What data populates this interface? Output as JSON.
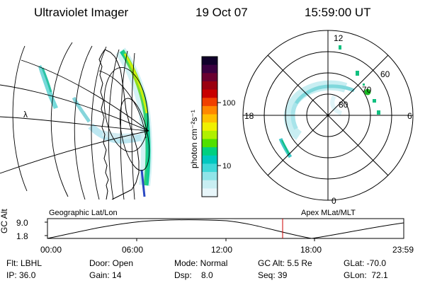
{
  "header": {
    "title": "Ultraviolet Imager",
    "date": "19 Oct 07",
    "time": "15:59:00 UT"
  },
  "geographic_panel": {
    "edge_label": "λ"
  },
  "colorbar": {
    "unit_label": "photon cm⁻²s⁻¹",
    "ticks": [
      "100",
      "10"
    ],
    "colors": [
      "#10002a",
      "#3a0040",
      "#6a0030",
      "#9a0010",
      "#c80000",
      "#f04000",
      "#ff8800",
      "#ffc000",
      "#f0f000",
      "#b0f000",
      "#50e000",
      "#00d080",
      "#00c8c0",
      "#40d8d8",
      "#90e4e8",
      "#c8eef2",
      "#e8f6fa"
    ]
  },
  "polar_plot": {
    "lat_labels": [
      "80",
      "70",
      "60"
    ],
    "mlt_labels": {
      "top": "12",
      "bottom": "0",
      "left": "18",
      "right": "6"
    }
  },
  "altitude_strip": {
    "axis_title": "GC Alt",
    "y_ticks": [
      "9.0",
      "1.8"
    ],
    "left_title": "Geographic Lat/Lon",
    "right_title": "Apex MLat/MLT",
    "time_ticks": [
      "00:00",
      "06:00",
      "12:00",
      "18:00",
      "23:59"
    ],
    "marker_color": "#cc0000"
  },
  "info": {
    "col1": [
      "Flt: LBHL",
      "IP: 36.0"
    ],
    "col2": [
      "Door: Open",
      "Gain: 14"
    ],
    "col3": [
      "Mode: Normal",
      "Dsp:    8.0"
    ],
    "col4": [
      "GC Alt: 5.5 Re",
      "Seq: 39"
    ],
    "col5": [
      "GLat: -70.0",
      "GLon:  72.1"
    ]
  }
}
